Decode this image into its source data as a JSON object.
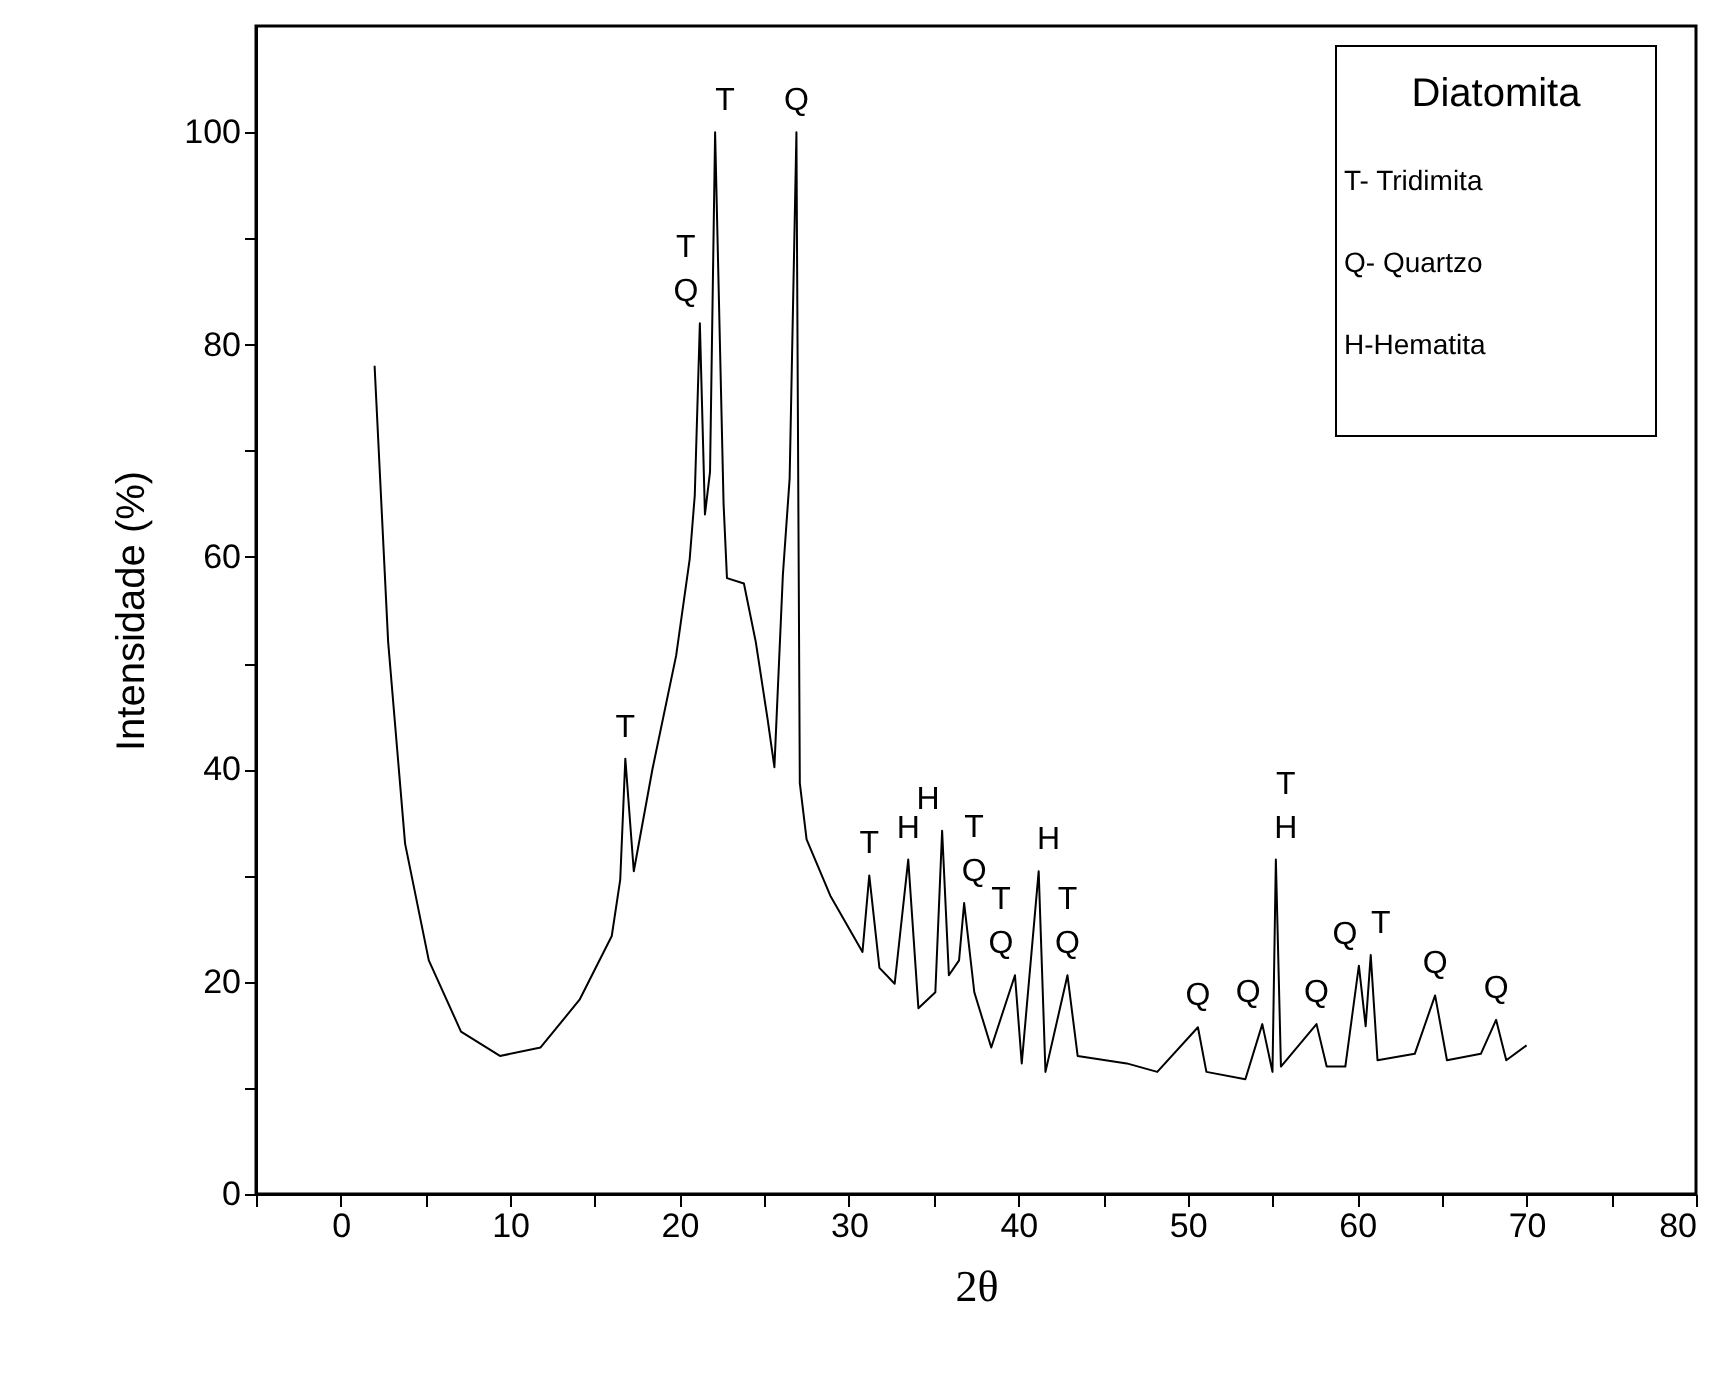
{
  "chart_data": {
    "type": "line",
    "xlabel": "2θ",
    "ylabel": "Intensidade (%)",
    "xlim": [
      -5,
      80
    ],
    "ylim": [
      0,
      110
    ],
    "xticks": [
      {
        "value": -5,
        "label": null
      },
      0,
      {
        "value": 5,
        "label": null
      },
      10,
      {
        "value": 15,
        "label": null
      },
      20,
      {
        "value": 25,
        "label": null
      },
      30,
      {
        "value": 35,
        "label": null
      },
      40,
      {
        "value": 45,
        "label": null
      },
      50,
      {
        "value": 55,
        "label": null
      },
      60,
      {
        "value": 65,
        "label": null
      },
      70,
      {
        "value": 75,
        "label": null
      },
      80
    ],
    "yticks": [
      0,
      {
        "value": 10,
        "label": null
      },
      20,
      {
        "value": 30,
        "label": null
      },
      40,
      {
        "value": 50,
        "label": null
      },
      60,
      {
        "value": 70,
        "label": null
      },
      80,
      {
        "value": 90,
        "label": null
      },
      100
    ],
    "grid": false,
    "marker": "none",
    "line_style": "solid",
    "series": [
      {
        "color": "#000000",
        "x": [
          2.0,
          2.8,
          3.8,
          5.2,
          7.1,
          9.4,
          11.8,
          14.1,
          16.0,
          16.5,
          16.8,
          17.3,
          18.4,
          19.8,
          20.6,
          20.9,
          21.2,
          21.5,
          21.8,
          22.1,
          22.6,
          22.8,
          23.8,
          24.5,
          25.2,
          25.6,
          26.1,
          26.5,
          26.9,
          27.1,
          27.5,
          28.9,
          30.8,
          31.2,
          31.8,
          32.7,
          33.5,
          34.1,
          35.1,
          35.5,
          35.9,
          36.5,
          36.8,
          37.4,
          38.4,
          39.8,
          40.2,
          41.2,
          41.6,
          42.9,
          43.5,
          46.4,
          48.2,
          50.6,
          51.1,
          53.4,
          54.4,
          55.0,
          55.2,
          55.5,
          57.6,
          58.2,
          59.3,
          60.1,
          60.5,
          60.8,
          61.2,
          63.4,
          64.6,
          65.3,
          67.3,
          68.2,
          68.8,
          70.0
        ],
        "values": [
          78,
          52,
          33,
          22,
          15.3,
          13,
          13.8,
          18.3,
          24.3,
          29.6,
          41,
          30.4,
          40,
          50.7,
          59.8,
          65.8,
          82,
          64,
          68,
          100,
          65,
          58,
          57.5,
          52,
          44.7,
          40.2,
          58.3,
          67.4,
          100,
          38.7,
          33.4,
          28.1,
          22.8,
          30,
          21.3,
          19.8,
          31.5,
          17.5,
          19,
          34.2,
          20.6,
          22,
          27.4,
          19,
          13.8,
          20.6,
          12.3,
          30.4,
          11.5,
          20.6,
          13,
          12.3,
          11.5,
          15.7,
          11.5,
          10.8,
          16,
          11.5,
          31.5,
          12,
          16,
          12,
          12,
          21.5,
          15.8,
          22.5,
          12.6,
          13.2,
          18.7,
          12.6,
          13.2,
          16.4,
          12.6,
          14
        ]
      }
    ],
    "annotations": [
      {
        "text": "T",
        "x": 16.8,
        "y": 41
      },
      {
        "text": "T",
        "x": 21.2,
        "y": 82
      },
      {
        "text": "Q",
        "x": 21.2,
        "y": 82
      },
      {
        "text": "T",
        "x": 22.1,
        "y": 100
      },
      {
        "text": "Q",
        "x": 26.9,
        "y": 100
      },
      {
        "text": "T",
        "x": 31.2,
        "y": 30
      },
      {
        "text": "H",
        "x": 33.5,
        "y": 31.5
      },
      {
        "text": "H",
        "x": 35.5,
        "y": 34.2
      },
      {
        "text": "T",
        "x": 36.8,
        "y": 27.4
      },
      {
        "text": "Q",
        "x": 36.8,
        "y": 27.4
      },
      {
        "text": "T",
        "x": 39.8,
        "y": 20.6
      },
      {
        "text": "Q",
        "x": 39.8,
        "y": 20.6
      },
      {
        "text": "H",
        "x": 41.2,
        "y": 30.4
      },
      {
        "text": "T",
        "x": 42.9,
        "y": 20.6
      },
      {
        "text": "Q",
        "x": 42.9,
        "y": 20.6
      },
      {
        "text": "Q",
        "x": 50.6,
        "y": 15.7
      },
      {
        "text": "Q",
        "x": 54.4,
        "y": 16
      },
      {
        "text": "T",
        "x": 55.2,
        "y": 31.5
      },
      {
        "text": "H",
        "x": 55.2,
        "y": 31.5
      },
      {
        "text": "Q",
        "x": 57.6,
        "y": 16
      },
      {
        "text": "Q",
        "x": 60.1,
        "y": 21.5
      },
      {
        "text": "T",
        "x": 60.8,
        "y": 22.5
      },
      {
        "text": "Q",
        "x": 64.6,
        "y": 18.7
      },
      {
        "text": "Q",
        "x": 68.2,
        "y": 16.4
      },
      "Diatomita",
      "T- Tridimita",
      "Q- Quartzo",
      "H-Hematita"
    ]
  }
}
